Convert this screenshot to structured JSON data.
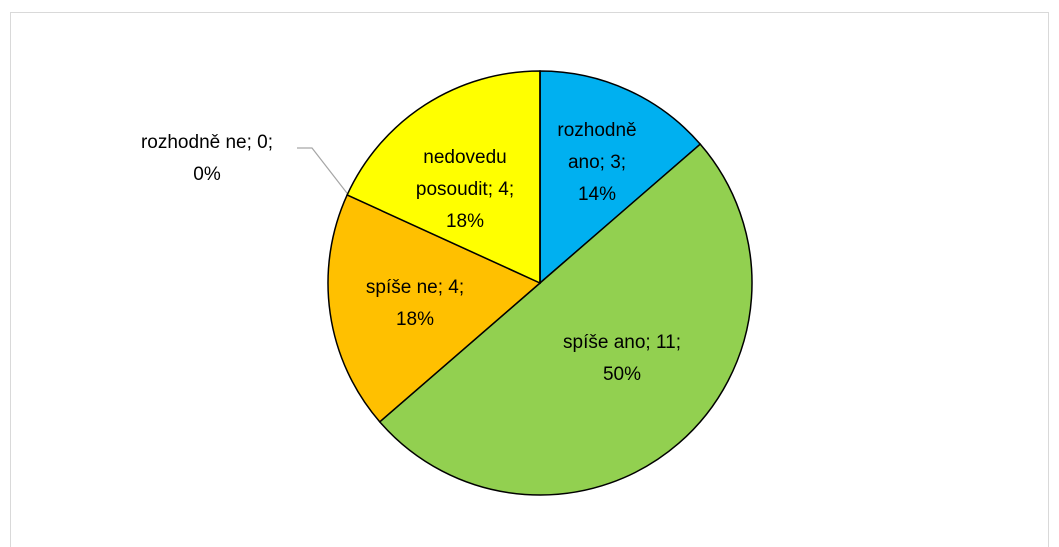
{
  "chart_data": {
    "type": "pie",
    "categories": [
      "rozhodně ano",
      "spíše ano",
      "spíše ne",
      "nedovedu posoudit",
      "rozhodně ne"
    ],
    "values": [
      3,
      11,
      4,
      4,
      0
    ],
    "colors": [
      "#00B0F0",
      "#92D050",
      "#FFC000",
      "#FFFF00",
      "#A5A5A5"
    ],
    "labels": [
      [
        "rozhodně",
        "ano; 3;",
        "14%"
      ],
      [
        "spíše ano; 11;",
        "50%"
      ],
      [
        "spíše ne; 4;",
        "18%"
      ],
      [
        "nedovedu",
        "posoudit; 4;",
        "18%"
      ],
      [
        "rozhodně ne; 0;",
        "0%"
      ]
    ]
  }
}
